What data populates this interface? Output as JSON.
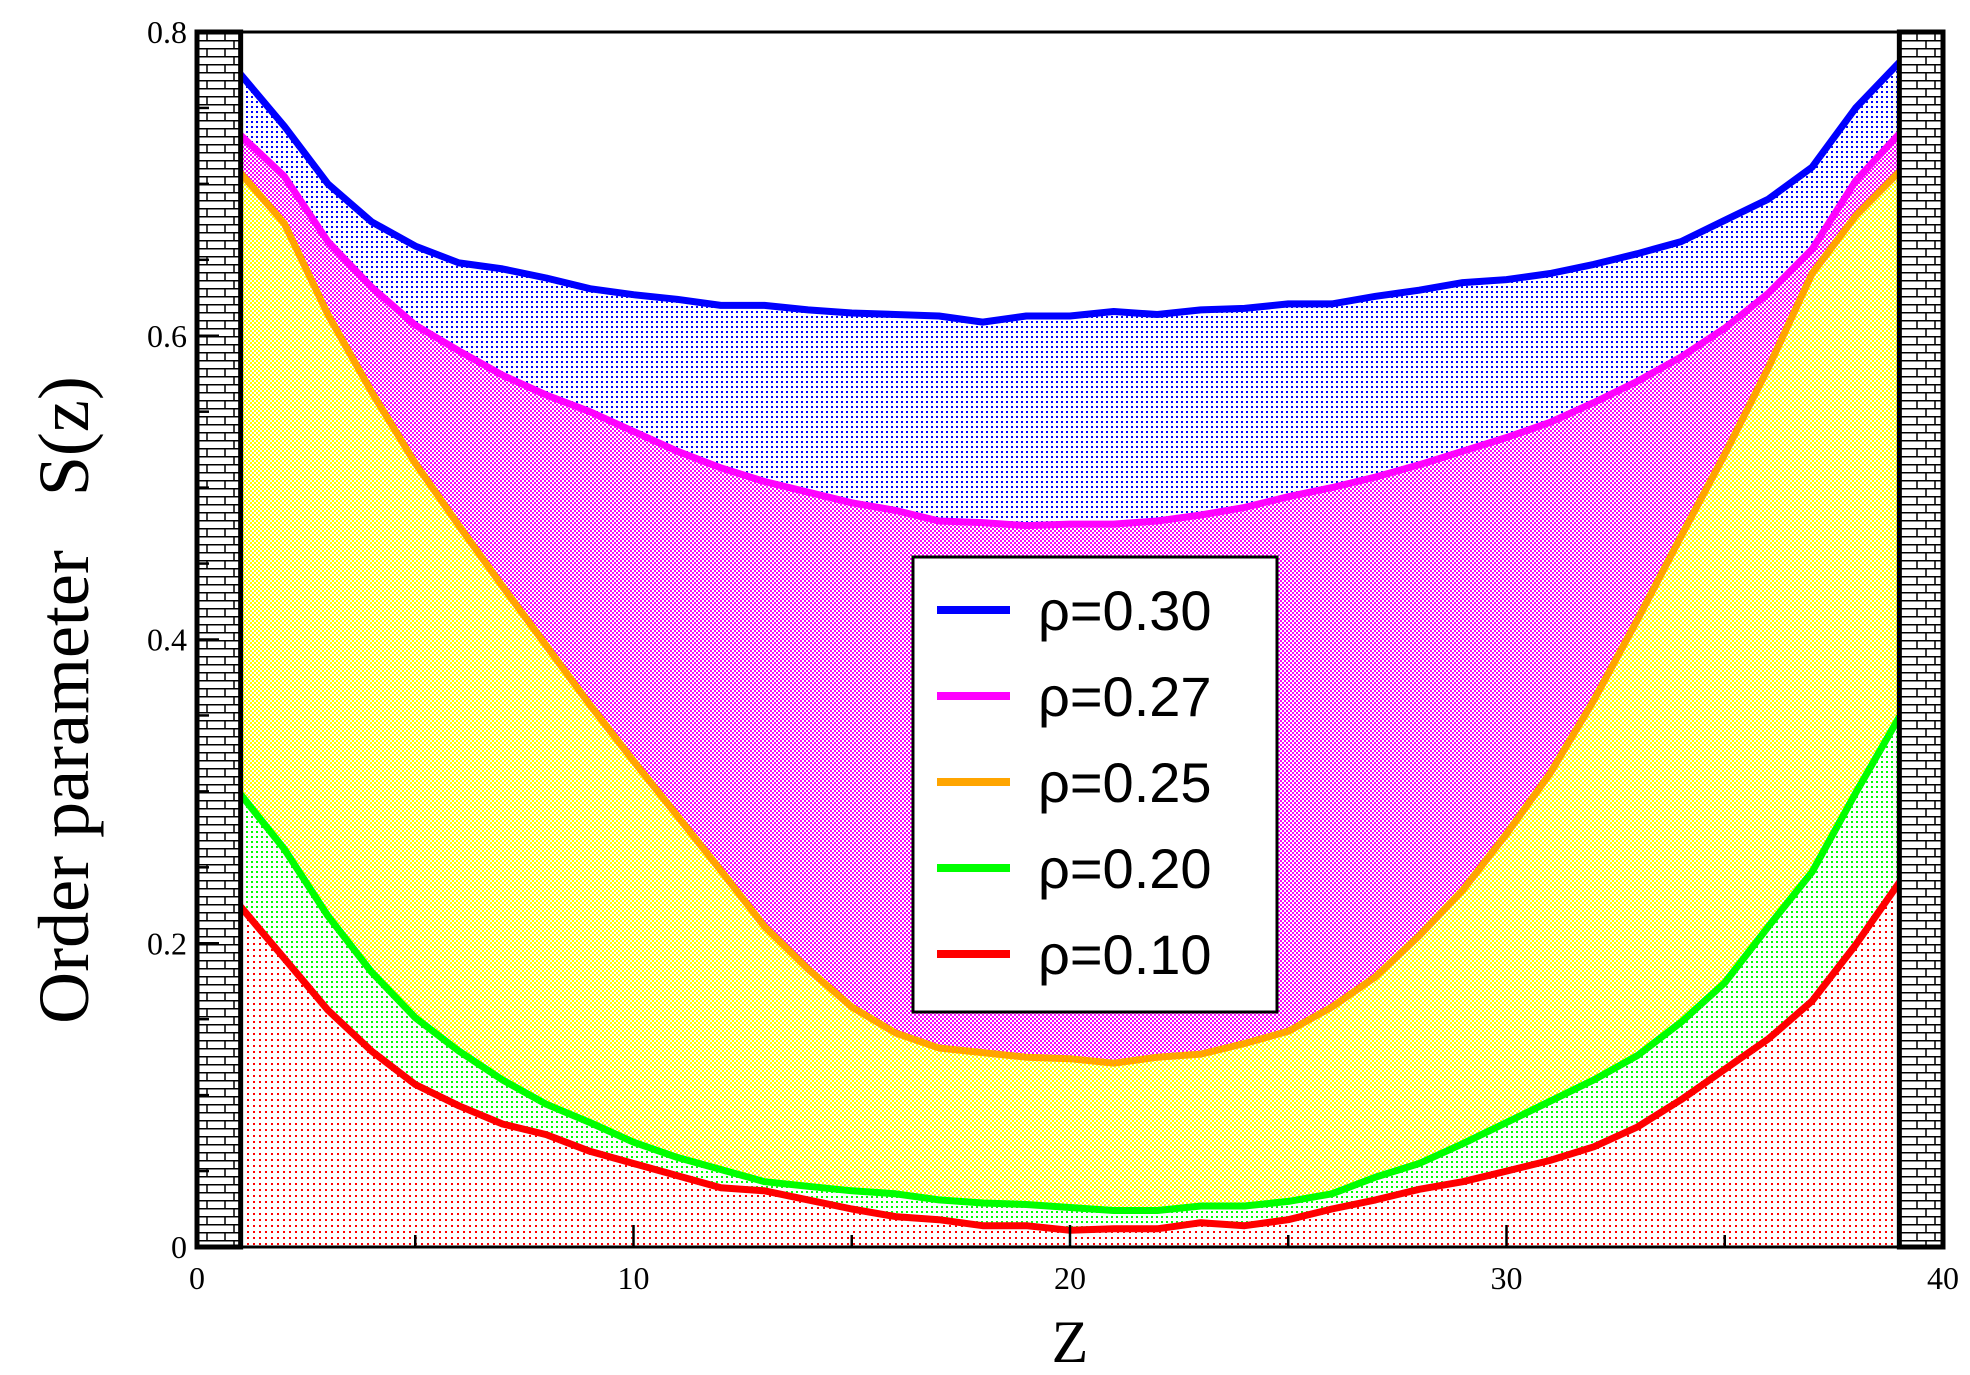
{
  "chart_data": {
    "type": "area",
    "title": "",
    "xlabel": "Z",
    "ylabel": "Order parameter   S(z)",
    "xlim": [
      0,
      40
    ],
    "ylim": [
      0,
      0.8
    ],
    "x_ticks": [
      0,
      10,
      20,
      30,
      40
    ],
    "y_ticks": [
      0,
      0.2,
      0.4,
      0.6,
      0.8
    ],
    "x_tick_labels": [
      "0",
      "10",
      "20",
      "30",
      "40"
    ],
    "y_tick_labels": [
      "0",
      "0.2",
      "0.4",
      "0.6",
      "0.8"
    ],
    "grid": false,
    "legend_position": "center",
    "walls": {
      "left_x": [
        0,
        1
      ],
      "right_x": [
        39,
        40
      ],
      "pattern": "brick"
    },
    "x": [
      1,
      2,
      3,
      4,
      5,
      6,
      7,
      8,
      9,
      10,
      11,
      12,
      13,
      14,
      15,
      16,
      17,
      18,
      19,
      20,
      21,
      22,
      23,
      24,
      25,
      26,
      27,
      28,
      29,
      30,
      31,
      32,
      33,
      34,
      35,
      36,
      37,
      38,
      39
    ],
    "series": [
      {
        "name": "ρ=0.30",
        "color": "#0000ff",
        "values": [
          0.772,
          0.738,
          0.7,
          0.675,
          0.659,
          0.648,
          0.644,
          0.638,
          0.631,
          0.627,
          0.624,
          0.62,
          0.62,
          0.617,
          0.615,
          0.614,
          0.613,
          0.609,
          0.613,
          0.613,
          0.616,
          0.614,
          0.617,
          0.618,
          0.621,
          0.621,
          0.626,
          0.63,
          0.635,
          0.637,
          0.641,
          0.647,
          0.654,
          0.662,
          0.676,
          0.69,
          0.711,
          0.75,
          0.78
        ]
      },
      {
        "name": "ρ=0.27",
        "color": "#ff00ff",
        "values": [
          0.732,
          0.705,
          0.662,
          0.632,
          0.607,
          0.59,
          0.574,
          0.561,
          0.55,
          0.537,
          0.524,
          0.513,
          0.504,
          0.497,
          0.49,
          0.485,
          0.478,
          0.477,
          0.475,
          0.476,
          0.476,
          0.478,
          0.482,
          0.487,
          0.494,
          0.5,
          0.507,
          0.515,
          0.524,
          0.533,
          0.543,
          0.556,
          0.57,
          0.586,
          0.605,
          0.628,
          0.657,
          0.702,
          0.733
        ]
      },
      {
        "name": "ρ=0.25",
        "color": "#ffa500",
        "values": [
          0.707,
          0.674,
          0.614,
          0.563,
          0.516,
          0.475,
          0.435,
          0.396,
          0.357,
          0.32,
          0.284,
          0.248,
          0.211,
          0.183,
          0.158,
          0.141,
          0.131,
          0.128,
          0.125,
          0.124,
          0.121,
          0.125,
          0.127,
          0.134,
          0.142,
          0.158,
          0.178,
          0.205,
          0.235,
          0.272,
          0.312,
          0.36,
          0.413,
          0.468,
          0.522,
          0.579,
          0.641,
          0.679,
          0.708
        ]
      },
      {
        "name": "ρ=0.20",
        "color": "#00ff00",
        "values": [
          0.298,
          0.262,
          0.218,
          0.181,
          0.151,
          0.129,
          0.11,
          0.094,
          0.082,
          0.069,
          0.059,
          0.051,
          0.043,
          0.04,
          0.037,
          0.035,
          0.031,
          0.029,
          0.028,
          0.026,
          0.024,
          0.024,
          0.027,
          0.027,
          0.03,
          0.035,
          0.046,
          0.055,
          0.068,
          0.082,
          0.096,
          0.11,
          0.126,
          0.148,
          0.174,
          0.211,
          0.247,
          0.299,
          0.349
        ]
      },
      {
        "name": "ρ=0.10",
        "color": "#ff0000",
        "values": [
          0.224,
          0.19,
          0.156,
          0.129,
          0.107,
          0.093,
          0.081,
          0.074,
          0.063,
          0.055,
          0.047,
          0.039,
          0.037,
          0.031,
          0.025,
          0.02,
          0.018,
          0.014,
          0.014,
          0.011,
          0.012,
          0.012,
          0.016,
          0.014,
          0.018,
          0.025,
          0.031,
          0.038,
          0.043,
          0.05,
          0.057,
          0.066,
          0.079,
          0.097,
          0.117,
          0.137,
          0.162,
          0.199,
          0.24
        ]
      }
    ]
  }
}
